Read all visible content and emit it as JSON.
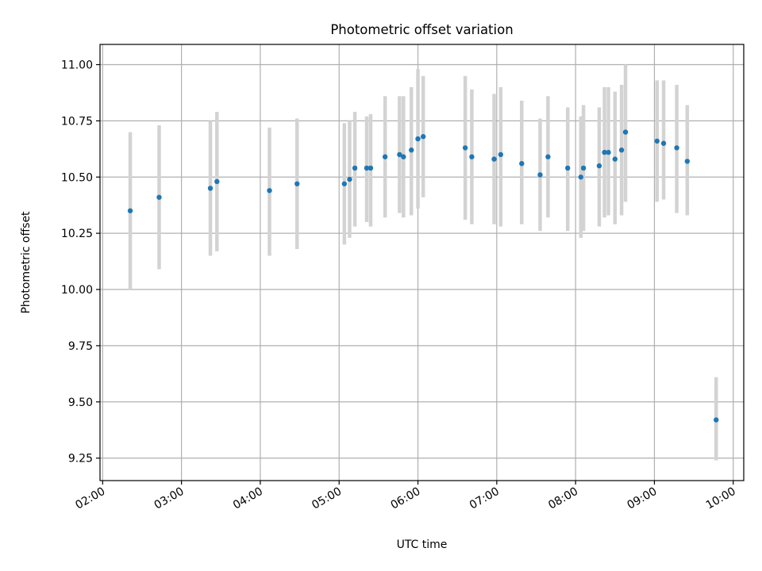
{
  "chart_data": {
    "type": "scatter",
    "title": "Photometric offset variation",
    "xlabel": "UTC time",
    "ylabel": "Photometric offset",
    "x_unit": "UTC hours",
    "xlim": [
      "01:58",
      "10:08"
    ],
    "ylim": [
      9.15,
      11.09
    ],
    "grid": true,
    "colors": {
      "point": "#1f77b4",
      "errorbar": "#d3d3d3",
      "grid": "#b0b0b0"
    },
    "x_ticks": [
      "02:00",
      "03:00",
      "04:00",
      "05:00",
      "06:00",
      "07:00",
      "08:00",
      "09:00",
      "10:00"
    ],
    "y_ticks": [
      "9.25",
      "9.50",
      "9.75",
      "10.00",
      "10.25",
      "10.50",
      "10.75",
      "11.00"
    ],
    "points": [
      {
        "x": "02:21",
        "y": 10.35,
        "yerr": [
          10.0,
          10.7
        ]
      },
      {
        "x": "02:43",
        "y": 10.41,
        "yerr": [
          10.09,
          10.73
        ]
      },
      {
        "x": "03:22",
        "y": 10.45,
        "yerr": [
          10.15,
          10.75
        ]
      },
      {
        "x": "03:27",
        "y": 10.48,
        "yerr": [
          10.17,
          10.79
        ]
      },
      {
        "x": "04:07",
        "y": 10.44,
        "yerr": [
          10.15,
          10.72
        ]
      },
      {
        "x": "04:28",
        "y": 10.47,
        "yerr": [
          10.18,
          10.76
        ]
      },
      {
        "x": "05:04",
        "y": 10.47,
        "yerr": [
          10.2,
          10.74
        ]
      },
      {
        "x": "05:08",
        "y": 10.49,
        "yerr": [
          10.23,
          10.75
        ]
      },
      {
        "x": "05:12",
        "y": 10.54,
        "yerr": [
          10.28,
          10.79
        ]
      },
      {
        "x": "05:21",
        "y": 10.54,
        "yerr": [
          10.3,
          10.77
        ]
      },
      {
        "x": "05:24",
        "y": 10.54,
        "yerr": [
          10.28,
          10.78
        ]
      },
      {
        "x": "05:35",
        "y": 10.59,
        "yerr": [
          10.32,
          10.86
        ]
      },
      {
        "x": "05:46",
        "y": 10.6,
        "yerr": [
          10.34,
          10.86
        ]
      },
      {
        "x": "05:49",
        "y": 10.59,
        "yerr": [
          10.32,
          10.86
        ]
      },
      {
        "x": "05:55",
        "y": 10.62,
        "yerr": [
          10.33,
          10.9
        ]
      },
      {
        "x": "06:00",
        "y": 10.67,
        "yerr": [
          10.36,
          10.98
        ]
      },
      {
        "x": "06:04",
        "y": 10.68,
        "yerr": [
          10.41,
          10.95
        ]
      },
      {
        "x": "06:36",
        "y": 10.63,
        "yerr": [
          10.31,
          10.95
        ]
      },
      {
        "x": "06:41",
        "y": 10.59,
        "yerr": [
          10.29,
          10.89
        ]
      },
      {
        "x": "06:58",
        "y": 10.58,
        "yerr": [
          10.29,
          10.87
        ]
      },
      {
        "x": "07:03",
        "y": 10.6,
        "yerr": [
          10.28,
          10.9
        ]
      },
      {
        "x": "07:19",
        "y": 10.56,
        "yerr": [
          10.29,
          10.84
        ]
      },
      {
        "x": "07:33",
        "y": 10.51,
        "yerr": [
          10.26,
          10.76
        ]
      },
      {
        "x": "07:39",
        "y": 10.59,
        "yerr": [
          10.32,
          10.86
        ]
      },
      {
        "x": "07:54",
        "y": 10.54,
        "yerr": [
          10.26,
          10.81
        ]
      },
      {
        "x": "08:04",
        "y": 10.5,
        "yerr": [
          10.23,
          10.77
        ]
      },
      {
        "x": "08:06",
        "y": 10.54,
        "yerr": [
          10.26,
          10.82
        ]
      },
      {
        "x": "08:18",
        "y": 10.55,
        "yerr": [
          10.28,
          10.81
        ]
      },
      {
        "x": "08:22",
        "y": 10.61,
        "yerr": [
          10.32,
          10.9
        ]
      },
      {
        "x": "08:25",
        "y": 10.61,
        "yerr": [
          10.33,
          10.9
        ]
      },
      {
        "x": "08:30",
        "y": 10.58,
        "yerr": [
          10.29,
          10.88
        ]
      },
      {
        "x": "08:35",
        "y": 10.62,
        "yerr": [
          10.33,
          10.91
        ]
      },
      {
        "x": "08:38",
        "y": 10.7,
        "yerr": [
          10.39,
          11.0
        ]
      },
      {
        "x": "09:02",
        "y": 10.66,
        "yerr": [
          10.39,
          10.93
        ]
      },
      {
        "x": "09:07",
        "y": 10.65,
        "yerr": [
          10.4,
          10.93
        ]
      },
      {
        "x": "09:17",
        "y": 10.63,
        "yerr": [
          10.34,
          10.91
        ]
      },
      {
        "x": "09:25",
        "y": 10.57,
        "yerr": [
          10.33,
          10.82
        ]
      },
      {
        "x": "09:47",
        "y": 9.42,
        "yerr": [
          9.24,
          9.61
        ]
      }
    ]
  }
}
